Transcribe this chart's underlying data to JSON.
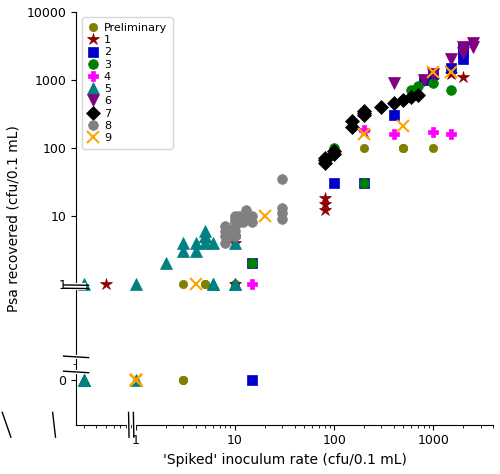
{
  "title": "",
  "xlabel": "'Spiked' inoculum rate (cfu/0.1 mL)",
  "ylabel": "Psa recovered (cfu/0.1 mL)",
  "series": [
    {
      "label": "Preliminary",
      "color": "#808000",
      "marker": "o",
      "markersize": 6,
      "x": [
        3,
        3,
        3,
        5,
        5,
        10,
        10,
        200,
        500,
        500,
        1000,
        1500,
        2000
      ],
      "y": [
        0,
        0,
        1,
        1,
        1,
        1,
        1,
        100,
        100,
        100,
        100,
        1500,
        2000
      ]
    },
    {
      "label": "1",
      "color": "#8B0000",
      "marker": "*",
      "markersize": 9,
      "x": [
        0.5,
        5,
        10,
        10,
        80,
        80,
        80,
        200,
        1000,
        1500,
        2000
      ],
      "y": [
        1,
        4,
        1,
        4,
        12,
        15,
        18,
        170,
        1000,
        1200,
        1100
      ]
    },
    {
      "label": "2",
      "color": "#0000CD",
      "marker": "s",
      "markersize": 7,
      "x": [
        15,
        15,
        100,
        200,
        400,
        800,
        1000,
        1500,
        2000,
        2000,
        2000
      ],
      "y": [
        0,
        2,
        30,
        30,
        300,
        1000,
        1200,
        1500,
        2000,
        2500,
        3000
      ]
    },
    {
      "label": "3",
      "color": "#008000",
      "marker": "o",
      "markersize": 7,
      "x": [
        15,
        15,
        100,
        200,
        500,
        600,
        700,
        1000,
        1500
      ],
      "y": [
        2,
        2,
        100,
        30,
        500,
        700,
        800,
        900,
        700
      ]
    },
    {
      "label": "4",
      "color": "#FF00FF",
      "marker": "P",
      "markersize": 7,
      "x": [
        10,
        15,
        200,
        400,
        1000,
        1500
      ],
      "y": [
        5,
        1,
        180,
        160,
        170,
        160
      ]
    },
    {
      "label": "5",
      "color": "#008080",
      "marker": "^",
      "markersize": 8,
      "x": [
        0.3,
        0.3,
        0.3,
        0.3,
        1,
        1,
        2,
        3,
        3,
        4,
        4,
        5,
        5,
        5,
        6,
        6,
        6,
        10,
        10,
        10
      ],
      "y": [
        0,
        0,
        0,
        1,
        0,
        1,
        2,
        3,
        4,
        3,
        4,
        4,
        5,
        6,
        1,
        1,
        4,
        1,
        1,
        4
      ]
    },
    {
      "label": "6",
      "color": "#800080",
      "marker": "v",
      "markersize": 8,
      "x": [
        400,
        800,
        1000,
        1500,
        2000,
        2000,
        2500,
        2500
      ],
      "y": [
        900,
        1000,
        1200,
        2000,
        2500,
        3000,
        3000,
        3500
      ]
    },
    {
      "label": "7",
      "color": "#000000",
      "marker": "D",
      "markersize": 7,
      "x": [
        80,
        80,
        80,
        100,
        100,
        150,
        150,
        200,
        200,
        200,
        300,
        400,
        500,
        600,
        700
      ],
      "y": [
        60,
        65,
        70,
        80,
        90,
        200,
        250,
        300,
        320,
        350,
        400,
        450,
        500,
        550,
        600
      ]
    },
    {
      "label": "8",
      "color": "#808080",
      "marker": "o",
      "markersize": 7,
      "x": [
        8,
        8,
        8,
        8,
        9,
        9,
        10,
        10,
        10,
        10,
        10,
        10,
        11,
        11,
        12,
        12,
        13,
        15,
        15,
        30,
        30,
        30,
        30
      ],
      "y": [
        4,
        5,
        6,
        7,
        5,
        6,
        5,
        6,
        7,
        8,
        9,
        10,
        8,
        10,
        8,
        10,
        12,
        8,
        10,
        9,
        11,
        13,
        35
      ]
    },
    {
      "label": "9",
      "color": "#FFA500",
      "marker": "x",
      "markersize": 8,
      "x": [
        1,
        1,
        1,
        1,
        4,
        20,
        200,
        500,
        1000,
        1500
      ],
      "y": [
        0,
        0,
        0,
        0,
        1,
        10,
        160,
        210,
        1300,
        1300
      ]
    }
  ]
}
